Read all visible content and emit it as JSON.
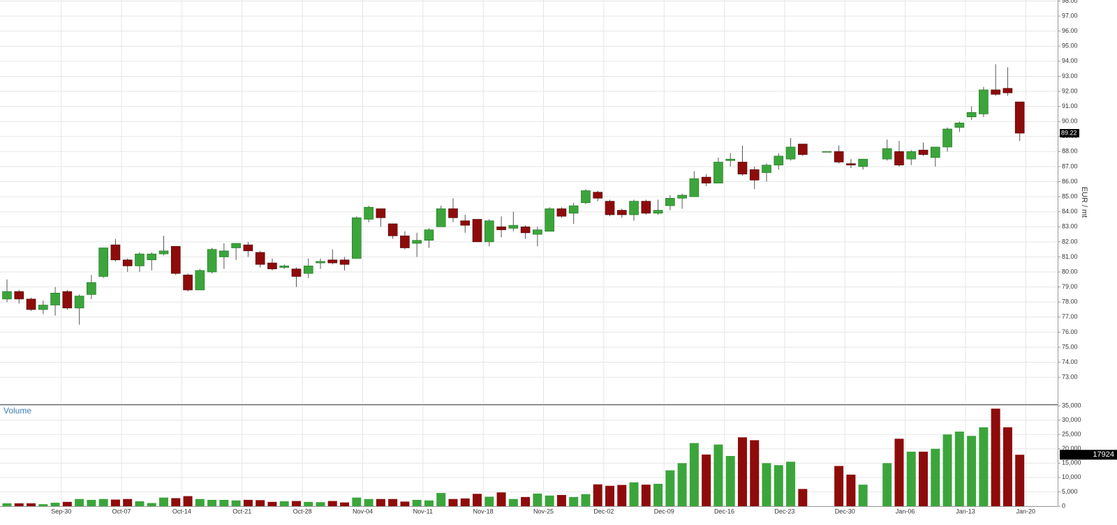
{
  "chart_data": {
    "type": "candlestick",
    "y_label": "EUR / mt",
    "volume_label": "Volume",
    "up_color": "#3ba53b",
    "down_color": "#8e0b0b",
    "grid": true,
    "categories": [
      null,
      null,
      null,
      null,
      null,
      "Sep-30",
      null,
      null,
      null,
      null,
      "Oct-07",
      null,
      null,
      null,
      null,
      "Oct-14",
      null,
      null,
      null,
      null,
      "Oct-21",
      null,
      null,
      null,
      null,
      "Oct-28",
      null,
      null,
      null,
      null,
      "Nov-04",
      null,
      null,
      null,
      null,
      "Nov-11",
      null,
      null,
      null,
      null,
      "Nov-18",
      null,
      null,
      null,
      null,
      "Nov-25",
      null,
      null,
      null,
      null,
      "Dec-02",
      null,
      null,
      null,
      null,
      "Dec-09",
      null,
      null,
      null,
      null,
      "Dec-16",
      null,
      null,
      null,
      null,
      "Dec-23",
      null,
      null,
      null,
      null,
      "Dec-30",
      null,
      null,
      null,
      null,
      "Jan-06",
      null,
      null,
      null,
      null,
      "Jan-13",
      null,
      null,
      null,
      null,
      "Jan-20"
    ],
    "open": [
      78.2,
      78.7,
      78.2,
      77.5,
      77.8,
      78.7,
      77.6,
      78.5,
      79.7,
      81.8,
      80.8,
      80.4,
      80.8,
      81.2,
      81.7,
      79.8,
      78.8,
      80.0,
      81.0,
      81.6,
      81.8,
      81.3,
      80.6,
      80.3,
      80.2,
      79.9,
      80.6,
      80.8,
      80.8,
      80.9,
      83.5,
      84.2,
      83.2,
      82.4,
      81.9,
      82.1,
      83.0,
      84.2,
      83.4,
      83.5,
      82.0,
      83.0,
      82.9,
      83.0,
      82.5,
      82.7,
      84.2,
      83.9,
      84.6,
      85.3,
      84.7,
      84.1,
      83.8,
      84.7,
      83.9,
      84.4,
      84.9,
      85.0,
      86.3,
      85.9,
      87.4,
      87.3,
      86.8,
      86.6,
      87.1,
      87.5,
      88.5,
      null,
      88.0,
      88.0,
      87.2,
      87.0,
      null,
      87.5,
      88.0,
      87.5,
      88.1,
      87.6,
      88.3,
      89.6,
      90.3,
      90.5,
      92.1,
      92.2,
      91.3,
      null
    ],
    "high": [
      79.5,
      78.8,
      78.3,
      78.1,
      79.0,
      78.8,
      78.5,
      79.8,
      81.6,
      82.2,
      80.9,
      81.3,
      81.3,
      82.4,
      81.7,
      79.9,
      80.2,
      81.6,
      81.9,
      81.9,
      82.0,
      81.4,
      80.9,
      80.5,
      80.3,
      80.9,
      80.9,
      81.5,
      81.0,
      83.7,
      84.4,
      84.2,
      83.2,
      82.7,
      82.6,
      82.9,
      84.4,
      84.9,
      83.8,
      83.5,
      83.5,
      83.7,
      84.0,
      83.1,
      83.0,
      84.3,
      84.3,
      84.6,
      85.5,
      85.4,
      84.8,
      84.2,
      84.8,
      84.8,
      84.8,
      85.1,
      85.2,
      86.7,
      86.5,
      87.6,
      87.9,
      88.4,
      87.0,
      87.2,
      87.9,
      88.9,
      88.5,
      null,
      88.0,
      88.4,
      87.5,
      87.5,
      null,
      88.8,
      88.7,
      88.1,
      88.6,
      88.3,
      89.6,
      90.0,
      91.0,
      92.3,
      93.8,
      93.6,
      91.3,
      null
    ],
    "low": [
      78.0,
      77.9,
      77.4,
      77.2,
      77.1,
      77.5,
      76.5,
      78.2,
      79.6,
      80.7,
      80.0,
      80.0,
      80.1,
      81.1,
      79.8,
      78.7,
      78.8,
      79.9,
      80.2,
      80.8,
      81.0,
      80.3,
      80.1,
      80.2,
      79.0,
      79.6,
      80.2,
      80.5,
      80.1,
      80.9,
      83.3,
      83.0,
      82.2,
      81.5,
      81.0,
      81.6,
      83.0,
      83.3,
      82.6,
      82.0,
      81.7,
      82.3,
      82.7,
      82.2,
      81.7,
      82.7,
      83.6,
      83.2,
      84.5,
      84.7,
      83.7,
      83.6,
      83.4,
      83.8,
      83.8,
      84.1,
      84.2,
      85.0,
      85.7,
      85.9,
      87.0,
      86.4,
      85.5,
      86.0,
      86.8,
      87.4,
      87.7,
      null,
      88.0,
      87.2,
      86.9,
      86.8,
      null,
      87.4,
      87.0,
      87.1,
      87.7,
      87.0,
      88.0,
      89.3,
      90.1,
      90.3,
      91.7,
      91.7,
      88.7,
      null
    ],
    "close": [
      78.7,
      78.2,
      77.5,
      77.8,
      78.6,
      77.6,
      78.4,
      79.3,
      81.6,
      80.8,
      80.4,
      81.2,
      81.2,
      81.4,
      79.9,
      78.8,
      80.1,
      81.5,
      81.4,
      81.9,
      81.4,
      80.5,
      80.2,
      80.4,
      79.7,
      80.4,
      80.7,
      80.6,
      80.5,
      83.6,
      84.3,
      83.6,
      82.4,
      81.6,
      82.1,
      82.8,
      84.2,
      83.6,
      83.1,
      82.0,
      83.4,
      82.8,
      83.1,
      82.6,
      82.8,
      84.2,
      83.7,
      84.4,
      85.4,
      84.9,
      83.8,
      83.8,
      84.7,
      83.9,
      84.1,
      84.9,
      85.1,
      86.2,
      85.9,
      87.3,
      87.5,
      86.5,
      86.1,
      87.1,
      87.7,
      88.3,
      87.8,
      null,
      88.0,
      87.3,
      87.1,
      87.5,
      null,
      88.2,
      87.1,
      88.0,
      87.8,
      88.3,
      89.5,
      89.9,
      90.6,
      92.1,
      91.8,
      91.9,
      89.22,
      null
    ],
    "volume": [
      1000,
      1000,
      1000,
      700,
      1200,
      1500,
      2500,
      2200,
      2500,
      2300,
      2500,
      1700,
      1100,
      3000,
      2800,
      3500,
      2500,
      2200,
      2200,
      2000,
      2200,
      2100,
      1500,
      1700,
      1800,
      1500,
      1400,
      1800,
      1300,
      3000,
      2500,
      2500,
      2500,
      1600,
      2200,
      2000,
      4600,
      2500,
      2700,
      4300,
      3300,
      4800,
      2500,
      3200,
      4400,
      3700,
      3900,
      3200,
      4200,
      7600,
      7100,
      7400,
      8300,
      7500,
      7800,
      12500,
      15000,
      22000,
      18000,
      21500,
      17500,
      24000,
      23000,
      15000,
      14300,
      15500,
      6000,
      null,
      null,
      14000,
      11000,
      7500,
      null,
      15000,
      23500,
      19000,
      19000,
      20000,
      25000,
      26000,
      24500,
      27500,
      34000,
      27500,
      17924,
      null
    ],
    "ylim": [
      71.2,
      98.07
    ],
    "yticks": [
      {
        "value": 73,
        "label": "73.00"
      },
      {
        "value": 74,
        "label": "74.00"
      },
      {
        "value": 75,
        "label": "75.00"
      },
      {
        "value": 76,
        "label": "76.00"
      },
      {
        "value": 77,
        "label": "77.00"
      },
      {
        "value": 78,
        "label": "78.00"
      },
      {
        "value": 79,
        "label": "79.00"
      },
      {
        "value": 80,
        "label": "80.00"
      },
      {
        "value": 81,
        "label": "81.00"
      },
      {
        "value": 82,
        "label": "82.00"
      },
      {
        "value": 83,
        "label": "83.00"
      },
      {
        "value": 84,
        "label": "84.00"
      },
      {
        "value": 85,
        "label": "85.00"
      },
      {
        "value": 86,
        "label": "86.00"
      },
      {
        "value": 87,
        "label": "87.00"
      },
      {
        "value": 88,
        "label": "88.00"
      },
      {
        "value": 89,
        "label": "89.00"
      },
      {
        "value": 90,
        "label": "90.00"
      },
      {
        "value": 91,
        "label": "91.00"
      },
      {
        "value": 92,
        "label": "92.00"
      },
      {
        "value": 93,
        "label": "93.00"
      },
      {
        "value": 94,
        "label": "94.00"
      },
      {
        "value": 95,
        "label": "95.00"
      },
      {
        "value": 96,
        "label": "96.00"
      },
      {
        "value": 97,
        "label": "97.00"
      },
      {
        "value": 98,
        "label": "98.00"
      }
    ],
    "y2lim": [
      0,
      35000
    ],
    "y2ticks": [
      0,
      {
        "value": 5000,
        "label": "5,000"
      },
      {
        "value": 10000,
        "label": "10,000"
      },
      {
        "value": 15000,
        "label": "15,000"
      },
      {
        "value": 20000,
        "label": "20,000"
      },
      {
        "value": 25000,
        "label": "25,000"
      },
      {
        "value": 30000,
        "label": "30,000"
      },
      {
        "value": 35000,
        "label": "35,000"
      }
    ]
  }
}
